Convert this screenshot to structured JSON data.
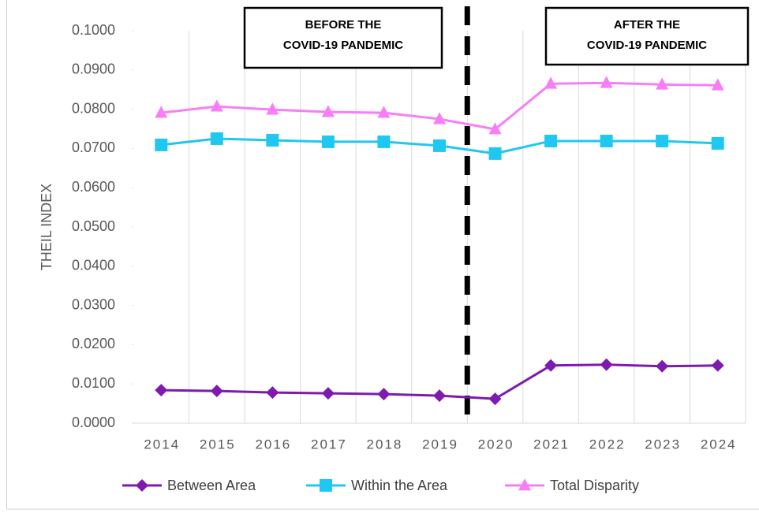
{
  "chart_data": {
    "type": "line",
    "y_label": "THEIL INDEX",
    "categories": [
      "2014",
      "2015",
      "2016",
      "2017",
      "2018",
      "2019",
      "2020",
      "2021",
      "2022",
      "2023",
      "2024"
    ],
    "series": [
      {
        "name": "Between Area",
        "color": "#7e1ab0",
        "marker": "diamond",
        "values": [
          0.0084,
          0.0082,
          0.0078,
          0.0076,
          0.0074,
          0.007,
          0.0062,
          0.0147,
          0.0149,
          0.0145,
          0.0147
        ]
      },
      {
        "name": "Within the Area",
        "color": "#1ec8f0",
        "marker": "square",
        "values": [
          0.0709,
          0.0725,
          0.0721,
          0.0717,
          0.0717,
          0.0707,
          0.0687,
          0.0719,
          0.0719,
          0.0719,
          0.0713
        ]
      },
      {
        "name": "Total Disparity",
        "color": "#f77ef7",
        "marker": "triangle",
        "values": [
          0.0791,
          0.0807,
          0.0799,
          0.0793,
          0.0791,
          0.0775,
          0.0749,
          0.0865,
          0.0867,
          0.0863,
          0.0861
        ]
      }
    ],
    "ylim": [
      0,
      0.1
    ],
    "yticks": [
      {
        "value": 0,
        "label": "0.0000"
      },
      {
        "value": 0.01,
        "label": "0.0100"
      },
      {
        "value": 0.02,
        "label": "0.0200"
      },
      {
        "value": 0.03,
        "label": "0.0300"
      },
      {
        "value": 0.04,
        "label": "0.0400"
      },
      {
        "value": 0.05,
        "label": "0.0500"
      },
      {
        "value": 0.06,
        "label": "0.0600"
      },
      {
        "value": 0.07,
        "label": "0.0700"
      },
      {
        "value": 0.08,
        "label": "0.0800"
      },
      {
        "value": 0.09,
        "label": "0.0900"
      },
      {
        "value": 0.1,
        "label": "0.1000"
      }
    ],
    "grid": "vertical",
    "legend": "bottom",
    "annotations": [
      {
        "lines": [
          "BEFORE THE",
          "COVID-19 PANDEMIC"
        ]
      },
      {
        "lines": [
          "AFTER THE",
          "COVID-19 PANDEMIC"
        ]
      }
    ]
  }
}
